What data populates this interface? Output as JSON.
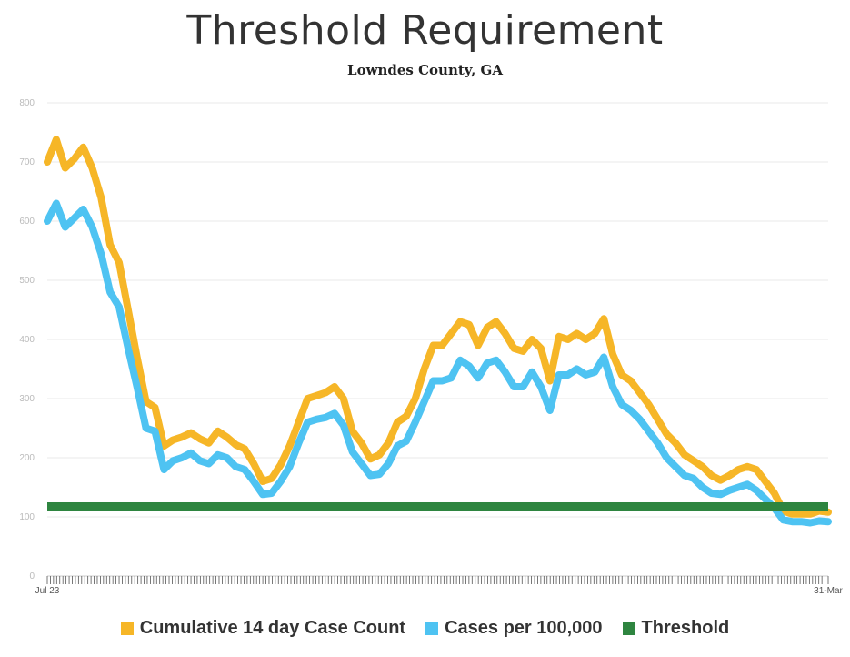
{
  "chart_data": {
    "type": "line",
    "title": "Threshold Requirement",
    "subtitle": "Lowndes County, GA",
    "x_start_label": "Jul 23",
    "x_end_label": "31-Mar",
    "ylim": [
      0,
      800
    ],
    "yticks": [
      0,
      100,
      200,
      300,
      400,
      500,
      600,
      700,
      800
    ],
    "grid": true,
    "legend_position": "bottom",
    "series": [
      {
        "name": "Cumulative 14 day Case Count",
        "color": "#F6B627",
        "values": [
          700,
          738,
          690,
          705,
          725,
          690,
          640,
          560,
          530,
          450,
          370,
          295,
          285,
          220,
          230,
          235,
          242,
          232,
          225,
          245,
          235,
          222,
          215,
          190,
          160,
          165,
          188,
          220,
          260,
          300,
          305,
          310,
          320,
          300,
          245,
          225,
          198,
          205,
          225,
          260,
          270,
          300,
          350,
          390,
          390,
          410,
          430,
          425,
          390,
          420,
          430,
          410,
          385,
          380,
          400,
          385,
          330,
          405,
          400,
          410,
          400,
          410,
          435,
          375,
          340,
          330,
          310,
          290,
          265,
          240,
          225,
          205,
          195,
          185,
          170,
          162,
          170,
          180,
          185,
          180,
          160,
          140,
          110,
          105,
          105,
          105,
          110,
          108
        ]
      },
      {
        "name": "Cases per 100,000",
        "color": "#4EC3F2",
        "values": [
          600,
          630,
          590,
          605,
          620,
          590,
          545,
          480,
          455,
          385,
          320,
          250,
          245,
          180,
          195,
          200,
          208,
          195,
          190,
          205,
          200,
          185,
          180,
          160,
          138,
          140,
          160,
          185,
          225,
          260,
          265,
          268,
          275,
          255,
          210,
          190,
          170,
          172,
          190,
          220,
          228,
          260,
          295,
          330,
          330,
          335,
          365,
          355,
          335,
          360,
          365,
          345,
          320,
          320,
          345,
          320,
          280,
          340,
          340,
          350,
          340,
          345,
          370,
          320,
          290,
          280,
          265,
          245,
          225,
          200,
          185,
          170,
          165,
          150,
          140,
          138,
          145,
          150,
          155,
          145,
          130,
          115,
          95,
          92,
          92,
          90,
          93,
          92
        ]
      },
      {
        "name": "Threshold",
        "color": "#2E8540",
        "values": [
          117,
          117
        ]
      }
    ]
  }
}
